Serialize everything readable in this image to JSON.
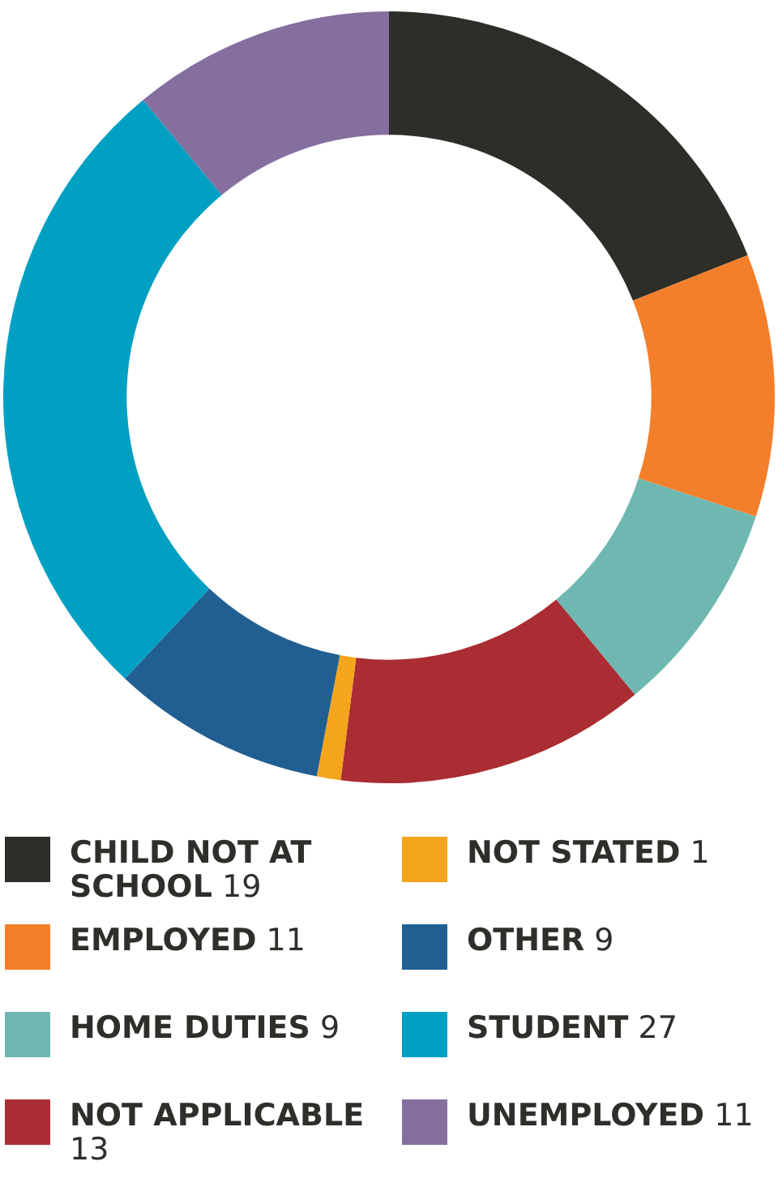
{
  "chart_data": {
    "type": "donut",
    "categories": [
      "CHILD NOT AT SCHOOL",
      "EMPLOYED",
      "HOME DUTIES",
      "NOT APPLICABLE",
      "NOT STATED",
      "OTHER",
      "STUDENT",
      "UNEMPLOYED"
    ],
    "values": [
      19,
      11,
      9,
      13,
      1,
      9,
      27,
      11
    ],
    "colors": [
      "#2e2e29",
      "#f47f2a",
      "#6fb8b2",
      "#a92d32",
      "#f5a51c",
      "#215f93",
      "#00a0c3",
      "#856f9f"
    ],
    "legend": "bottom",
    "data_labels": true
  }
}
